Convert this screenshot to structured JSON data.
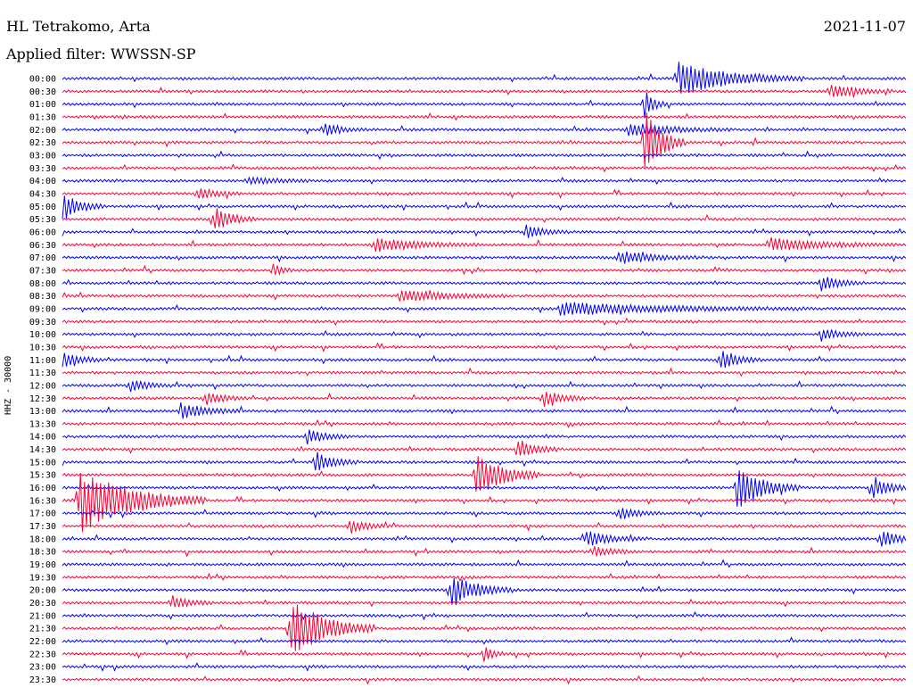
{
  "header": {
    "station": "HL Tetrakomo, Arta",
    "date": "2021-11-07",
    "filter": "Applied filter: WWSSN-SP",
    "channel_label": "HHZ - 30000"
  },
  "colors": {
    "odd": "#0000ff",
    "even": "#ff0033"
  },
  "chart_data": {
    "type": "line",
    "title": "HL Tetrakomo, Arta",
    "ylabel": "HHZ - 30000",
    "rows": [
      "00:00",
      "00:30",
      "01:00",
      "01:30",
      "02:00",
      "02:30",
      "03:00",
      "03:30",
      "04:00",
      "04:30",
      "05:00",
      "05:30",
      "06:00",
      "06:30",
      "07:00",
      "07:30",
      "08:00",
      "08:30",
      "09:00",
      "09:30",
      "10:00",
      "10:30",
      "11:00",
      "11:30",
      "12:00",
      "12:30",
      "13:00",
      "13:30",
      "14:00",
      "14:30",
      "15:00",
      "15:30",
      "16:00",
      "16:30",
      "17:00",
      "17:30",
      "18:00",
      "18:30",
      "19:00",
      "19:30",
      "20:00",
      "20:30",
      "21:00",
      "21:30",
      "22:00",
      "22:30",
      "23:00",
      "23:30"
    ],
    "row_minutes": 30,
    "events": [
      {
        "row": 0,
        "t": 0.73,
        "amp": 1.3,
        "dur": 0.06
      },
      {
        "row": 1,
        "t": 0.91,
        "amp": 0.6,
        "dur": 0.03
      },
      {
        "row": 2,
        "t": 0.69,
        "amp": 1.2,
        "dur": 0.01
      },
      {
        "row": 4,
        "t": 0.31,
        "amp": 0.5,
        "dur": 0.02
      },
      {
        "row": 4,
        "t": 0.67,
        "amp": 0.5,
        "dur": 0.05
      },
      {
        "row": 5,
        "t": 0.69,
        "amp": 2.6,
        "dur": 0.02
      },
      {
        "row": 8,
        "t": 0.22,
        "amp": 0.3,
        "dur": 0.03
      },
      {
        "row": 9,
        "t": 0.16,
        "amp": 0.5,
        "dur": 0.02
      },
      {
        "row": 10,
        "t": 0.0,
        "amp": 1.0,
        "dur": 0.02
      },
      {
        "row": 11,
        "t": 0.18,
        "amp": 1.0,
        "dur": 0.02
      },
      {
        "row": 12,
        "t": 0.55,
        "amp": 0.5,
        "dur": 0.02
      },
      {
        "row": 13,
        "t": 0.37,
        "amp": 0.5,
        "dur": 0.05
      },
      {
        "row": 13,
        "t": 0.84,
        "amp": 0.5,
        "dur": 0.06
      },
      {
        "row": 14,
        "t": 0.66,
        "amp": 0.5,
        "dur": 0.04
      },
      {
        "row": 15,
        "t": 0.25,
        "amp": 0.5,
        "dur": 0.01
      },
      {
        "row": 16,
        "t": 0.9,
        "amp": 0.6,
        "dur": 0.02
      },
      {
        "row": 17,
        "t": 0.4,
        "amp": 0.5,
        "dur": 0.05
      },
      {
        "row": 18,
        "t": 0.59,
        "amp": 0.5,
        "dur": 0.12
      },
      {
        "row": 20,
        "t": 0.9,
        "amp": 0.5,
        "dur": 0.02
      },
      {
        "row": 22,
        "t": 0.0,
        "amp": 0.6,
        "dur": 0.02
      },
      {
        "row": 22,
        "t": 0.78,
        "amp": 0.8,
        "dur": 0.02
      },
      {
        "row": 24,
        "t": 0.08,
        "amp": 0.5,
        "dur": 0.02
      },
      {
        "row": 25,
        "t": 0.17,
        "amp": 0.5,
        "dur": 0.02
      },
      {
        "row": 25,
        "t": 0.57,
        "amp": 0.7,
        "dur": 0.02
      },
      {
        "row": 26,
        "t": 0.14,
        "amp": 0.6,
        "dur": 0.03
      },
      {
        "row": 28,
        "t": 0.29,
        "amp": 0.6,
        "dur": 0.02
      },
      {
        "row": 29,
        "t": 0.54,
        "amp": 0.8,
        "dur": 0.02
      },
      {
        "row": 30,
        "t": 0.3,
        "amp": 0.8,
        "dur": 0.02
      },
      {
        "row": 31,
        "t": 0.49,
        "amp": 1.8,
        "dur": 0.03
      },
      {
        "row": 32,
        "t": 0.8,
        "amp": 1.7,
        "dur": 0.03
      },
      {
        "row": 32,
        "t": 0.96,
        "amp": 0.8,
        "dur": 0.02
      },
      {
        "row": 33,
        "t": 0.02,
        "amp": 2.5,
        "dur": 0.06
      },
      {
        "row": 34,
        "t": 0.66,
        "amp": 0.5,
        "dur": 0.02
      },
      {
        "row": 35,
        "t": 0.34,
        "amp": 0.5,
        "dur": 0.02
      },
      {
        "row": 36,
        "t": 0.62,
        "amp": 0.6,
        "dur": 0.03
      },
      {
        "row": 36,
        "t": 0.97,
        "amp": 0.7,
        "dur": 0.02
      },
      {
        "row": 37,
        "t": 0.63,
        "amp": 0.4,
        "dur": 0.02
      },
      {
        "row": 40,
        "t": 0.46,
        "amp": 1.3,
        "dur": 0.03
      },
      {
        "row": 41,
        "t": 0.13,
        "amp": 0.5,
        "dur": 0.02
      },
      {
        "row": 43,
        "t": 0.27,
        "amp": 2.4,
        "dur": 0.04
      },
      {
        "row": 45,
        "t": 0.5,
        "amp": 0.6,
        "dur": 0.01
      }
    ]
  }
}
